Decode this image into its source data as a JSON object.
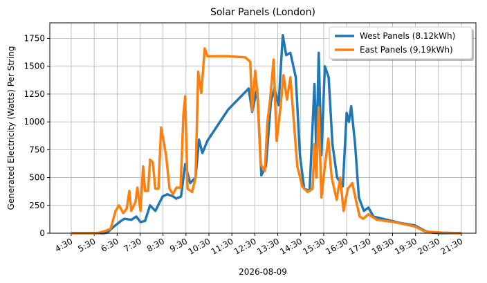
{
  "chart_data": {
    "type": "line",
    "title": "Solar Panels (London)",
    "xlabel": "2026-08-09",
    "ylabel": "Generated Electricity (Watts) Per String",
    "xlim": [
      "3:34",
      "22:08"
    ],
    "xticks": [
      "4:30",
      "5:30",
      "6:30",
      "7:30",
      "8:30",
      "9:30",
      "10:30",
      "11:30",
      "12:30",
      "13:30",
      "14:30",
      "15:30",
      "16:30",
      "17:30",
      "18:30",
      "19:30",
      "20:30",
      "21:30"
    ],
    "ylim": [
      0,
      1890
    ],
    "yticks": [
      0,
      250,
      500,
      750,
      1000,
      1250,
      1500,
      1750
    ],
    "grid": true,
    "legend": "upper right",
    "series": [
      {
        "name": "West Panels (8.12kWh)",
        "color": "#1f77b4",
        "x": [
          "4:30",
          "5:55",
          "6:04",
          "6:22",
          "6:40",
          "6:49",
          "7:07",
          "7:20",
          "7:31",
          "7:43",
          "7:56",
          "8:10",
          "8:29",
          "8:41",
          "8:56",
          "9:05",
          "9:17",
          "9:28",
          "9:41",
          "9:55",
          "10:04",
          "10:13",
          "10:26",
          "11:20",
          "12:14",
          "12:23",
          "12:36",
          "12:47",
          "12:59",
          "13:12",
          "13:21",
          "13:32",
          "13:43",
          "13:52",
          "14:03",
          "14:17",
          "14:28",
          "14:39",
          "14:53",
          "15:06",
          "15:11",
          "15:17",
          "15:24",
          "15:33",
          "15:43",
          "15:53",
          "16:05",
          "16:20",
          "16:30",
          "16:36",
          "16:42",
          "16:52",
          "17:02",
          "17:15",
          "17:27",
          "17:40",
          "18:16",
          "18:52",
          "19:28",
          "19:55",
          "20:13",
          "20:40",
          "21:30"
        ],
        "values": [
          0,
          0,
          5,
          60,
          110,
          130,
          120,
          150,
          100,
          110,
          250,
          200,
          330,
          350,
          330,
          310,
          330,
          620,
          450,
          500,
          840,
          720,
          830,
          1110,
          1300,
          1090,
          1300,
          520,
          600,
          1180,
          1300,
          1150,
          1780,
          1600,
          1620,
          1400,
          700,
          400,
          380,
          1340,
          700,
          1620,
          700,
          1500,
          1400,
          800,
          500,
          420,
          1080,
          1000,
          1140,
          800,
          320,
          200,
          230,
          150,
          120,
          90,
          70,
          20,
          5,
          0,
          0
        ]
      },
      {
        "name": "East Panels (9.19kWh)",
        "color": "#ff7f0e",
        "x": [
          "4:30",
          "5:37",
          "5:55",
          "6:13",
          "6:26",
          "6:35",
          "6:46",
          "6:55",
          "7:02",
          "7:07",
          "7:18",
          "7:23",
          "7:31",
          "7:38",
          "7:43",
          "7:51",
          "7:56",
          "8:03",
          "8:10",
          "8:18",
          "8:25",
          "8:38",
          "8:47",
          "8:56",
          "9:05",
          "9:16",
          "9:23",
          "9:28",
          "9:34",
          "9:46",
          "9:55",
          "10:02",
          "10:10",
          "10:19",
          "10:26",
          "11:20",
          "12:05",
          "12:18",
          "12:23",
          "12:31",
          "12:38",
          "12:45",
          "12:56",
          "13:03",
          "13:10",
          "13:19",
          "13:27",
          "13:36",
          "13:45",
          "13:54",
          "14:03",
          "14:12",
          "14:21",
          "14:34",
          "14:48",
          "15:01",
          "15:06",
          "15:11",
          "15:17",
          "15:24",
          "15:33",
          "15:42",
          "15:51",
          "16:04",
          "16:13",
          "16:22",
          "16:33",
          "16:45",
          "16:54",
          "17:04",
          "17:13",
          "17:27",
          "17:49",
          "18:34",
          "19:28",
          "19:55",
          "20:40",
          "21:30"
        ],
        "values": [
          0,
          0,
          15,
          40,
          200,
          250,
          180,
          220,
          380,
          200,
          280,
          410,
          200,
          600,
          380,
          380,
          660,
          640,
          400,
          400,
          950,
          700,
          400,
          350,
          410,
          410,
          1050,
          1230,
          400,
          370,
          500,
          1450,
          1260,
          1660,
          1590,
          1590,
          1580,
          1540,
          1100,
          1460,
          1200,
          620,
          560,
          1000,
          1200,
          1560,
          830,
          1100,
          1420,
          1200,
          1400,
          1000,
          600,
          420,
          370,
          400,
          800,
          500,
          1130,
          320,
          600,
          850,
          500,
          300,
          500,
          200,
          400,
          450,
          300,
          150,
          130,
          170,
          120,
          100,
          60,
          15,
          5,
          0
        ]
      }
    ]
  }
}
